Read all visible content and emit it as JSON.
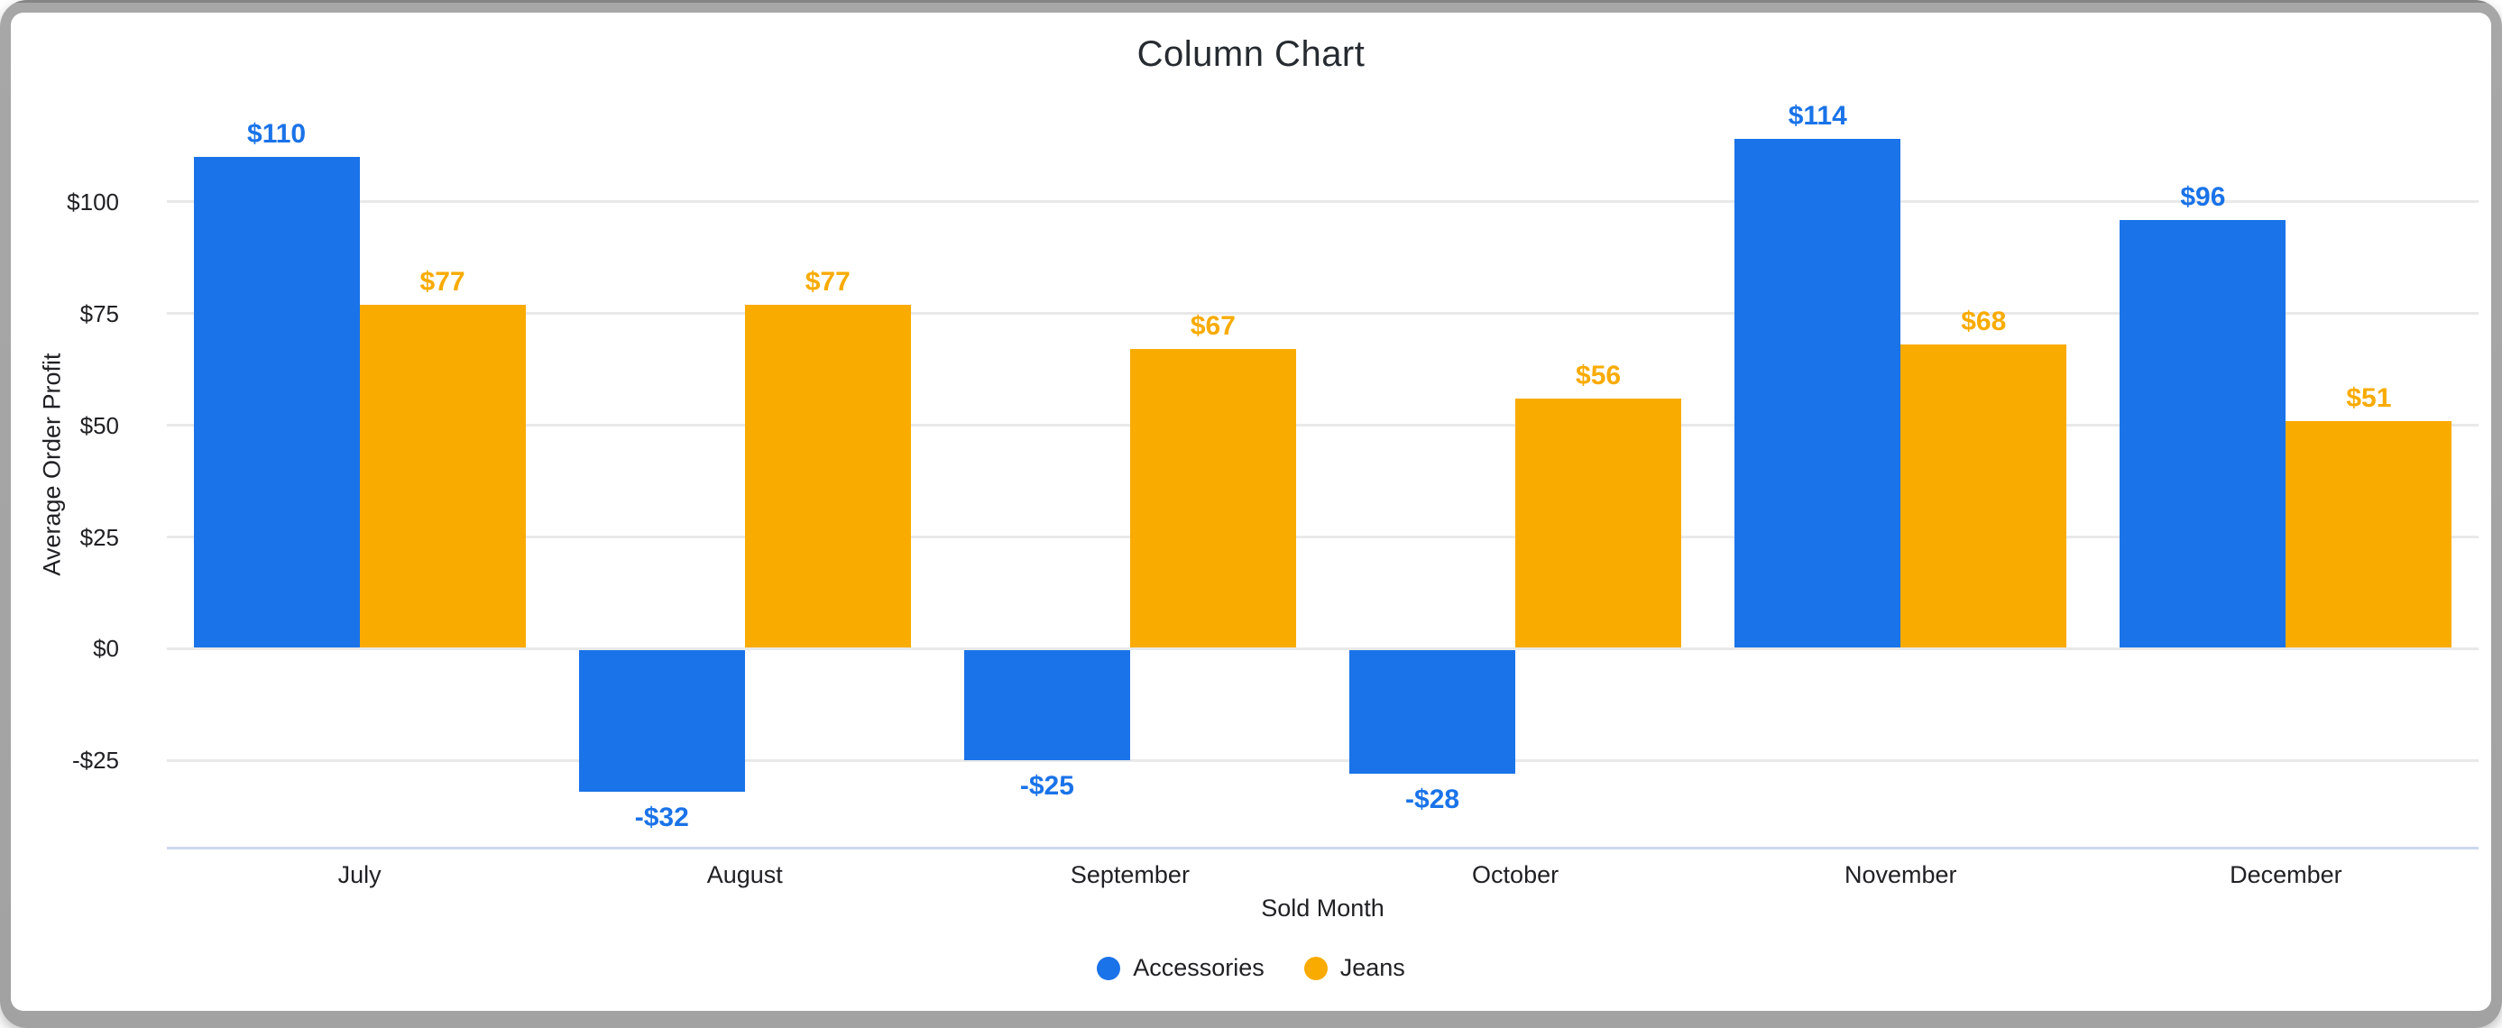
{
  "chart_data": {
    "type": "bar",
    "title": "Column Chart",
    "xlabel": "Sold Month",
    "ylabel": "Average Order Profit",
    "categories": [
      "July",
      "August",
      "September",
      "October",
      "November",
      "December"
    ],
    "series": [
      {
        "name": "Accessories",
        "color": "#1a73e8",
        "values": [
          110,
          -32,
          -25,
          -28,
          114,
          96
        ],
        "value_labels": [
          "$110",
          "-$32",
          "-$25",
          "-$28",
          "$114",
          "$96"
        ]
      },
      {
        "name": "Jeans",
        "color": "#f9ab00",
        "values": [
          77,
          77,
          67,
          56,
          68,
          51
        ],
        "value_labels": [
          "$77",
          "$77",
          "$67",
          "$56",
          "$68",
          "$51"
        ]
      }
    ],
    "y_axis": {
      "ticks": [
        {
          "value": 100,
          "label": "$100"
        },
        {
          "value": 75,
          "label": "$75"
        },
        {
          "value": 50,
          "label": "$50"
        },
        {
          "value": 25,
          "label": "$25"
        },
        {
          "value": 0,
          "label": "$0"
        },
        {
          "value": -25,
          "label": "-$25"
        }
      ],
      "range": [
        -44.5,
        126.8
      ]
    },
    "grid": true,
    "legend_position": "bottom",
    "colors": {
      "accessories": "#1a73e8",
      "jeans": "#f9ab00",
      "gridline": "#e9e9e9",
      "baseline": "#ccd8ee",
      "label_text": "#202124",
      "title_text": "#262b31"
    }
  }
}
